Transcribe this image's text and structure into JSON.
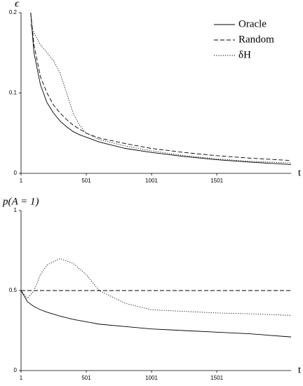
{
  "chart_data": [
    {
      "type": "line",
      "y_label": "ϵ",
      "x_label": "t",
      "x": [
        75,
        100,
        150,
        200,
        250,
        300,
        350,
        400,
        450,
        500,
        600,
        800,
        1000,
        1250,
        1500,
        1750,
        2070
      ],
      "xlim": [
        1,
        2070
      ],
      "xticks": [
        1,
        501,
        1001,
        1501
      ],
      "ylim": [
        0,
        0.2
      ],
      "yticks": [
        0,
        0.1,
        0.2
      ],
      "legend": "upper right",
      "series": [
        {
          "name": "Oracle",
          "color": "#000000",
          "dash": "solid",
          "values": [
            0.2,
            0.15,
            0.11,
            0.088,
            0.075,
            0.065,
            0.058,
            0.052,
            0.048,
            0.045,
            0.039,
            0.031,
            0.026,
            0.021,
            0.017,
            0.014,
            0.011
          ]
        },
        {
          "name": "Random",
          "color": "#000000",
          "dash": "dashed",
          "values": [
            0.2,
            0.16,
            0.12,
            0.1,
            0.085,
            0.075,
            0.067,
            0.06,
            0.055,
            0.05,
            0.044,
            0.037,
            0.031,
            0.026,
            0.022,
            0.019,
            0.016
          ]
        },
        {
          "name": "δH",
          "color": "#000000",
          "dash": "dotted",
          "values": [
            0.185,
            0.175,
            0.16,
            0.15,
            0.14,
            0.125,
            0.1,
            0.075,
            0.06,
            0.05,
            0.042,
            0.034,
            0.028,
            0.022,
            0.018,
            0.015,
            0.013
          ]
        }
      ]
    },
    {
      "type": "line",
      "y_label": "p(A = 1)",
      "x_label": "t",
      "x": [
        1,
        50,
        100,
        150,
        200,
        300,
        400,
        500,
        600,
        800,
        1000,
        1250,
        1500,
        1750,
        2070
      ],
      "xlim": [
        1,
        2070
      ],
      "xticks": [
        1,
        501,
        1001,
        1501
      ],
      "ylim": [
        0,
        1
      ],
      "yticks": [
        0,
        0.5,
        1
      ],
      "series": [
        {
          "color": "#000000",
          "dash": "solid",
          "values": [
            0.5,
            0.43,
            0.4,
            0.38,
            0.365,
            0.34,
            0.32,
            0.305,
            0.29,
            0.275,
            0.26,
            0.25,
            0.24,
            0.23,
            0.21
          ]
        },
        {
          "color": "#000000",
          "dash": "dashed",
          "values": [
            0.5,
            0.5,
            0.5,
            0.5,
            0.5,
            0.5,
            0.5,
            0.5,
            0.5,
            0.5,
            0.5,
            0.5,
            0.5,
            0.5,
            0.5
          ]
        },
        {
          "color": "#000000",
          "dash": "dotted",
          "values": [
            0.5,
            0.45,
            0.5,
            0.6,
            0.66,
            0.7,
            0.67,
            0.6,
            0.5,
            0.42,
            0.38,
            0.37,
            0.36,
            0.355,
            0.345
          ]
        }
      ]
    }
  ]
}
